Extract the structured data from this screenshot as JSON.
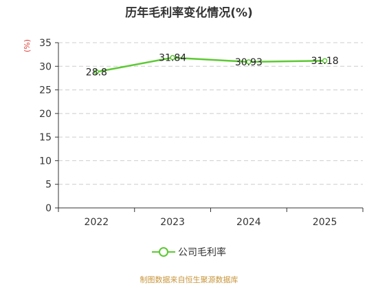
{
  "chart_data": {
    "type": "line",
    "title": "历年毛利率变化情况(%)",
    "ylabel": "(%)",
    "xlabel": "",
    "categories": [
      "2022",
      "2023",
      "2024",
      "2025"
    ],
    "series": [
      {
        "name": "公司毛利率",
        "values": [
          28.8,
          31.84,
          30.93,
          31.18
        ],
        "color": "#5cc932"
      }
    ],
    "ylim": [
      0,
      35
    ],
    "yticks": [
      0,
      5,
      10,
      15,
      20,
      25,
      30,
      35
    ],
    "grid": true,
    "legend": "bottom"
  },
  "footer": {
    "source": "制图数据来自恒生聚源数据库"
  }
}
